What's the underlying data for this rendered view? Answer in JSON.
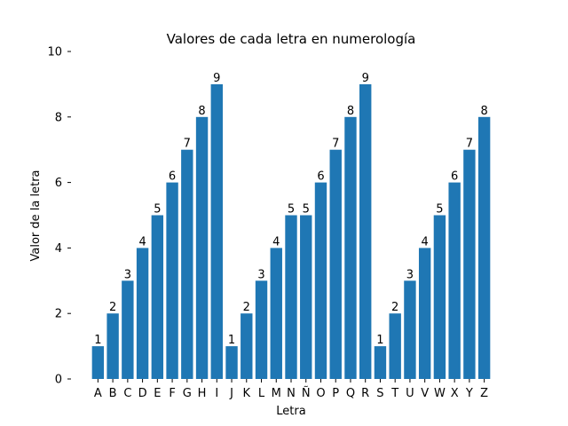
{
  "chart_data": {
    "type": "bar",
    "title": "Valores de cada letra en numerología",
    "xlabel": "Letra",
    "ylabel": "Valor de la letra",
    "categories": [
      "A",
      "B",
      "C",
      "D",
      "E",
      "F",
      "G",
      "H",
      "I",
      "J",
      "K",
      "L",
      "M",
      "N",
      "Ñ",
      "O",
      "P",
      "Q",
      "R",
      "S",
      "T",
      "U",
      "V",
      "W",
      "X",
      "Y",
      "Z"
    ],
    "values": [
      1,
      2,
      3,
      4,
      5,
      6,
      7,
      8,
      9,
      1,
      2,
      3,
      4,
      5,
      5,
      6,
      7,
      8,
      9,
      1,
      2,
      3,
      4,
      5,
      6,
      7,
      8
    ],
    "ylim": [
      0,
      10
    ],
    "yticks": [
      "0",
      "2",
      "4",
      "6",
      "8",
      "10"
    ],
    "bar_color": "#1f77b4",
    "grid": false,
    "data_labels": true
  }
}
